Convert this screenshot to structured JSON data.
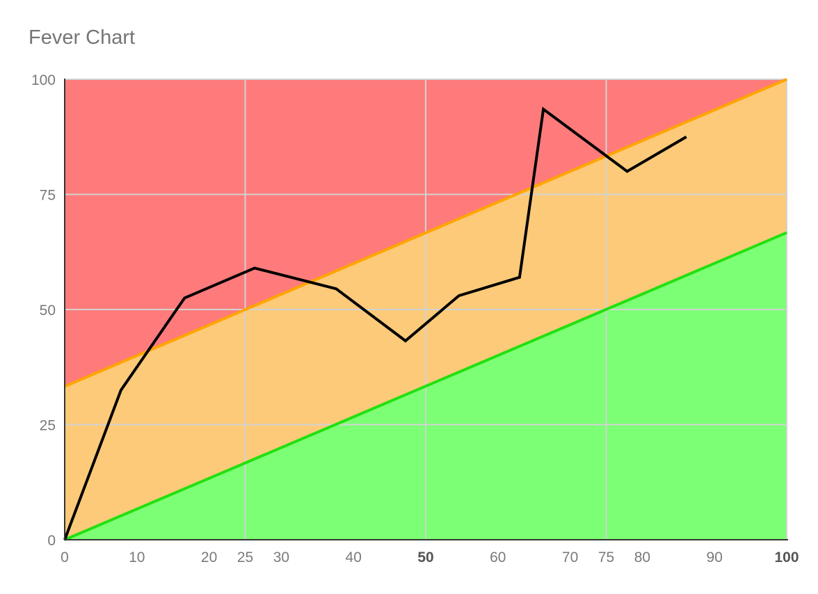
{
  "chart_data": {
    "type": "line",
    "title": "Fever Chart",
    "xlabel": "",
    "ylabel": "",
    "xlim": [
      0,
      100
    ],
    "ylim": [
      0,
      100
    ],
    "x_ticks": [
      {
        "value": 0,
        "label": "0",
        "bold": false
      },
      {
        "value": 10,
        "label": "10",
        "bold": false
      },
      {
        "value": 20,
        "label": "20",
        "bold": false
      },
      {
        "value": 25,
        "label": "25",
        "bold": false
      },
      {
        "value": 30,
        "label": "30",
        "bold": false
      },
      {
        "value": 40,
        "label": "40",
        "bold": false
      },
      {
        "value": 50,
        "label": "50",
        "bold": true
      },
      {
        "value": 60,
        "label": "60",
        "bold": false
      },
      {
        "value": 70,
        "label": "70",
        "bold": false
      },
      {
        "value": 75,
        "label": "75",
        "bold": false
      },
      {
        "value": 80,
        "label": "80",
        "bold": false
      },
      {
        "value": 90,
        "label": "90",
        "bold": false
      },
      {
        "value": 100,
        "label": "100",
        "bold": true
      }
    ],
    "y_ticks": [
      {
        "value": 0,
        "label": "0"
      },
      {
        "value": 25,
        "label": "25"
      },
      {
        "value": 50,
        "label": "50"
      },
      {
        "value": 75,
        "label": "75"
      },
      {
        "value": 100,
        "label": "100"
      }
    ],
    "x_gridlines": [
      25,
      50,
      75
    ],
    "y_gridlines": [
      25,
      50,
      75
    ],
    "zones": [
      {
        "name": "red",
        "color": "#ff7b7b",
        "from_line": "upper",
        "to": "top"
      },
      {
        "name": "yellow",
        "color": "#fdca79",
        "from_line": "lower",
        "to_line": "upper"
      },
      {
        "name": "green",
        "color": "#7cff74",
        "from": "bottom",
        "to_line": "lower"
      }
    ],
    "threshold_lines": [
      {
        "id": "upper",
        "color": "#ffa500",
        "points": [
          [
            0,
            33.3
          ],
          [
            100,
            100
          ]
        ]
      },
      {
        "id": "lower",
        "color": "#22e010",
        "points": [
          [
            0,
            0
          ],
          [
            100,
            66.7
          ]
        ]
      }
    ],
    "series": [
      {
        "color": "#000000",
        "x": [
          0,
          7.8,
          16.6,
          26.3,
          37.6,
          47.2,
          54.6,
          63.0,
          66.3,
          77.9,
          86.1
        ],
        "y": [
          0,
          32.5,
          52.5,
          59.0,
          54.5,
          43.2,
          53.0,
          57.0,
          93.5,
          80.0,
          87.5
        ]
      }
    ]
  }
}
